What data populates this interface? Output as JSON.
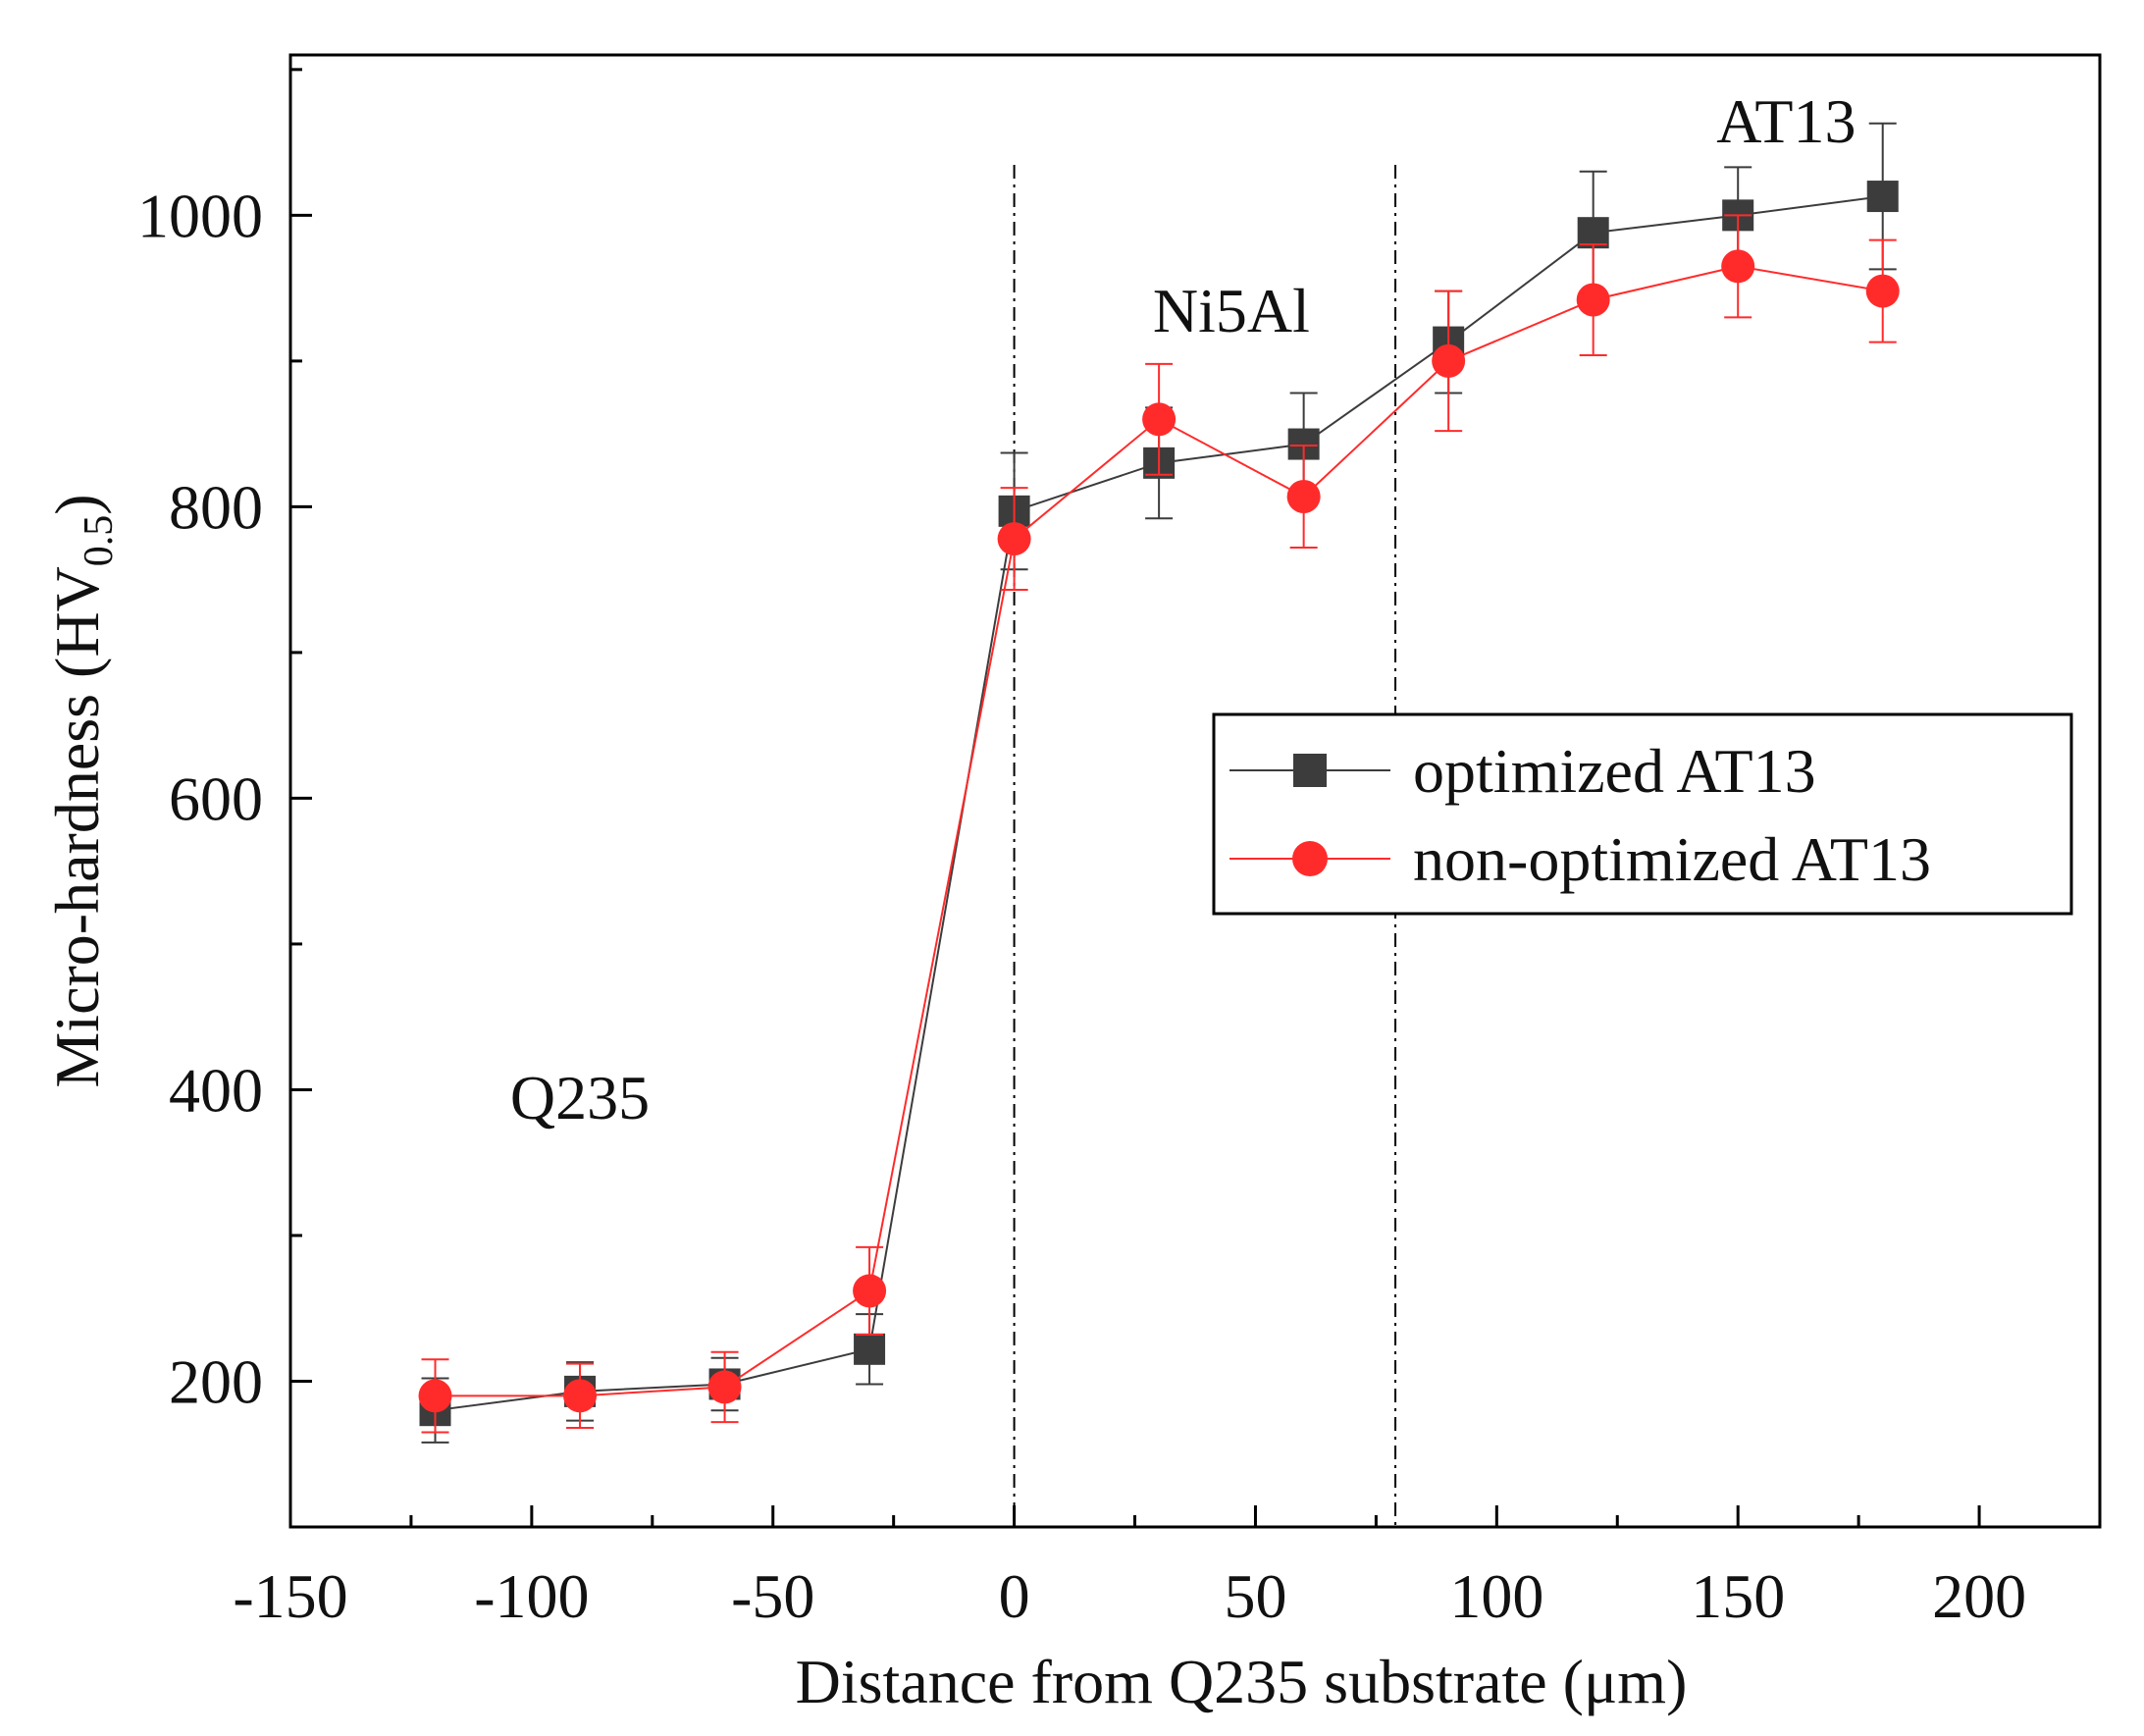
{
  "chart_data": {
    "type": "line",
    "title": "",
    "xlabel": "Distance from Q235 substrate (μm)",
    "ylabel": {
      "main": "Micro-hardness (HV",
      "subscript": "0.5",
      "close": ")"
    },
    "xlim": [
      -150,
      225
    ],
    "ylim": [
      100,
      1110
    ],
    "x_ticks": [
      -150,
      -100,
      -50,
      0,
      50,
      100,
      150,
      200
    ],
    "x_tick_labels": [
      "-150",
      "-100",
      "-50",
      "0",
      "50",
      "100",
      "150",
      "200"
    ],
    "y_ticks": [
      200,
      400,
      600,
      800,
      1000
    ],
    "y_tick_labels": [
      "200",
      "400",
      "600",
      "800",
      "1000"
    ],
    "x": [
      -120,
      -90,
      -60,
      -30,
      0,
      30,
      60,
      90,
      120,
      150,
      180
    ],
    "series": [
      {
        "name": "optimized AT13",
        "marker": "square",
        "color": "#3c3c3c",
        "values": [
          180,
          193,
          198,
          222,
          797,
          830,
          843,
          913,
          988,
          1000,
          1013
        ],
        "errors": [
          22,
          20,
          18,
          24,
          40,
          38,
          35,
          35,
          42,
          33,
          50
        ]
      },
      {
        "name": "non-optimized AT13",
        "marker": "circle",
        "color": "#ff2b2b",
        "values": [
          190,
          190,
          196,
          262,
          778,
          860,
          807,
          900,
          942,
          965,
          948
        ],
        "errors": [
          25,
          22,
          24,
          30,
          35,
          38,
          35,
          48,
          38,
          35,
          35
        ]
      }
    ],
    "boundaries": [
      0,
      79
    ],
    "region_labels": [
      {
        "text": "Q235",
        "x": -90,
        "y": 395
      },
      {
        "text": "Ni5Al",
        "x": 45,
        "y": 935
      },
      {
        "text": "AT13",
        "x": 160,
        "y": 1065
      }
    ],
    "legend_position": "center-right"
  }
}
